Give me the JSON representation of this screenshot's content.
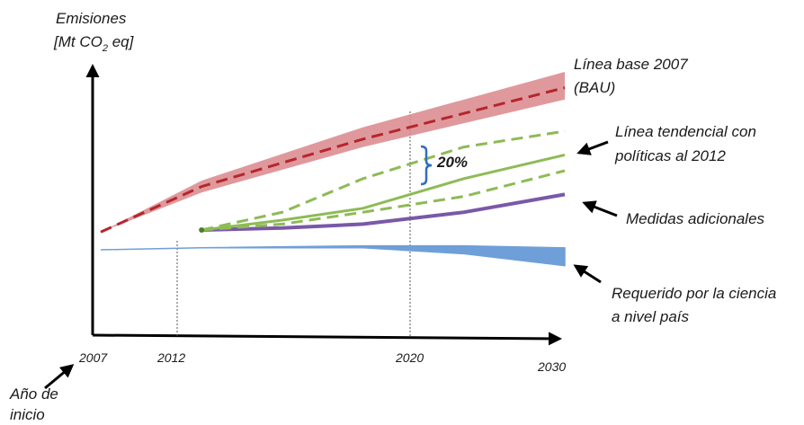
{
  "chart_data": {
    "type": "line",
    "title": "",
    "ylabel_line1": "Emisiones",
    "ylabel_line2_prefix": "[Mt CO",
    "ylabel_line2_sub": "2",
    "ylabel_line2_suffix": " eq]",
    "xlabel": "",
    "x_ticks": [
      "2007",
      "2012",
      "2020",
      "2030"
    ],
    "x_range": [
      2007,
      2030
    ],
    "y_range": [
      0,
      100
    ],
    "grid": false,
    "start_note_line1": "Año de",
    "start_note_line2": "inicio",
    "gap_label": "20%",
    "series": [
      {
        "key": "bau",
        "name_line1": "Línea base 2007",
        "name_line2": "(BAU)",
        "color": "#d9878b",
        "center_color": "#b5262d",
        "x": [
          2007,
          2012,
          2020,
          2030
        ],
        "center": [
          9,
          32,
          56,
          82
        ],
        "upper": [
          9,
          35,
          62,
          90
        ],
        "lower": [
          9,
          29,
          52,
          76
        ]
      },
      {
        "key": "tendencial",
        "name_line1": "Línea tendencial con",
        "name_line2": "políticas al 2012",
        "color": "#8dbb55",
        "x": [
          2012,
          2016,
          2020,
          2025,
          2030
        ],
        "center": [
          10,
          15,
          21,
          36,
          48
        ],
        "upper": [
          10,
          19,
          36,
          52,
          60
        ],
        "lower": [
          10,
          13,
          19,
          27,
          40
        ]
      },
      {
        "key": "adicionales",
        "name_line1": "Medidas adicionales",
        "color": "#7a58a8",
        "x": [
          2012,
          2016,
          2020,
          2025,
          2030
        ],
        "center": [
          10,
          11,
          13,
          19,
          28
        ]
      },
      {
        "key": "ciencia",
        "name_line1": "Requerido por la ciencia",
        "name_line2": "a nivel país",
        "color": "#6f9fd8",
        "x": [
          2007,
          2012,
          2020,
          2025,
          2030
        ],
        "upper": [
          0,
          1,
          2,
          2,
          1
        ],
        "lower": [
          0,
          1,
          1,
          -2,
          -8
        ]
      }
    ]
  }
}
